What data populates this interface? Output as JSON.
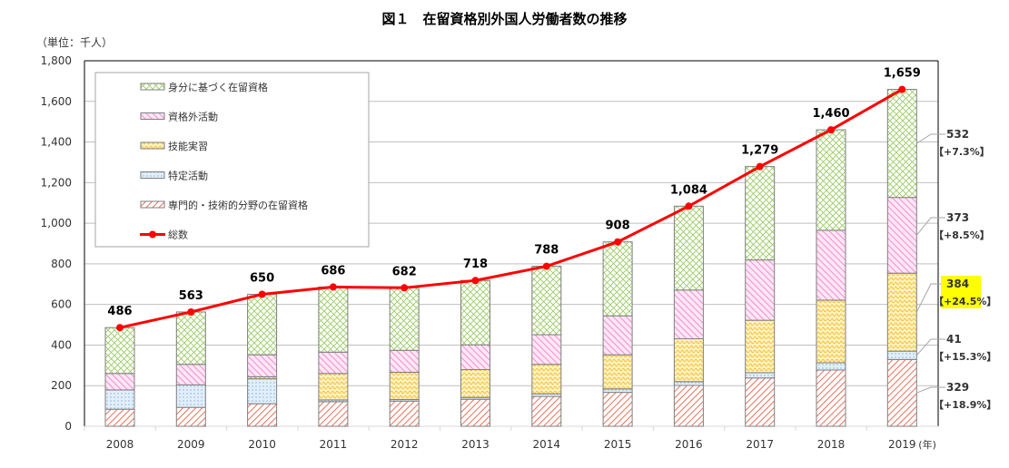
{
  "chart_data": {
    "type": "bar",
    "stacked": true,
    "title": "図１　在留資格別外国人労働者数の推移",
    "unit_label": "（単位：千人）",
    "xlabel": "",
    "x_suffix": "(年)",
    "ylabel": "",
    "ylim": [
      0,
      1800
    ],
    "yticks": [
      "0",
      "200",
      "400",
      "600",
      "800",
      "1,000",
      "1,200",
      "1,400",
      "1,600",
      "1,800"
    ],
    "categories": [
      "2008",
      "2009",
      "2010",
      "2011",
      "2012",
      "2013",
      "2014",
      "2015",
      "2016",
      "2017",
      "2018",
      "2019"
    ],
    "series": [
      {
        "name": "専門的・技術的分野の在留資格",
        "color": "#e8705a",
        "values": [
          84,
          93,
          111,
          121,
          124,
          133,
          147,
          167,
          201,
          238,
          277,
          329
        ]
      },
      {
        "name": "特定活動",
        "color": "#9dc3e6",
        "values": [
          95,
          111,
          123,
          9,
          8,
          9,
          13,
          17,
          19,
          26,
          36,
          41
        ]
      },
      {
        "name": "技能実習",
        "color": "#f5c542",
        "values": [
          0,
          0,
          10,
          130,
          134,
          137,
          145,
          168,
          211,
          258,
          308,
          384
        ]
      },
      {
        "name": "資格外活動",
        "color": "#f08fd0",
        "values": [
          81,
          101,
          108,
          105,
          108,
          122,
          146,
          192,
          240,
          297,
          344,
          373
        ]
      },
      {
        "name": "身分に基づく在留資格",
        "color": "#9ccc65",
        "values": [
          226,
          258,
          298,
          321,
          308,
          317,
          337,
          364,
          413,
          460,
          495,
          532
        ]
      }
    ],
    "line": {
      "name": "総数",
      "color": "#ff0000",
      "values": [
        486,
        563,
        650,
        686,
        682,
        718,
        788,
        908,
        1084,
        1279,
        1460,
        1659
      ],
      "labels": [
        "486",
        "563",
        "650",
        "686",
        "682",
        "718",
        "788",
        "908",
        "1,084",
        "1,279",
        "1,460",
        "1,659"
      ]
    },
    "annotations_2019": [
      {
        "value": "532",
        "change": "【+7.3%】",
        "highlight": false
      },
      {
        "value": "373",
        "change": "【+8.5%】",
        "highlight": false
      },
      {
        "value": "384",
        "change": "【+24.5%】",
        "highlight": true
      },
      {
        "value": "41",
        "change": "【+15.3%】",
        "highlight": false
      },
      {
        "value": "329",
        "change": "【+18.9%】",
        "highlight": false
      }
    ],
    "legend_order": [
      "身分に基づく在留資格",
      "資格外活動",
      "技能実習",
      "特定活動",
      "専門的・技術的分野の在留資格",
      "総数"
    ],
    "legend_position": "top-left",
    "grid": true,
    "highlight_color": "#ffff00"
  }
}
